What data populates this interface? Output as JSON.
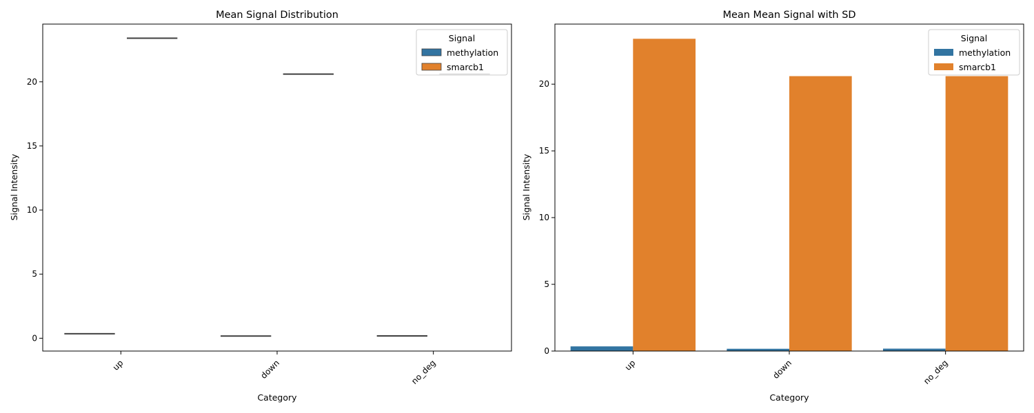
{
  "chart_data": [
    {
      "type": "box",
      "title": "Mean Signal Distribution",
      "xlabel": "Category",
      "ylabel": "Signal Intensity",
      "categories": [
        "up",
        "down",
        "no_deg"
      ],
      "ylim": [
        -1,
        24.5
      ],
      "yticks": [
        0,
        5,
        10,
        15,
        20
      ],
      "legend": {
        "title": "Signal",
        "position": "top-right"
      },
      "series": [
        {
          "name": "methylation",
          "color": "#3274a1",
          "values": [
            0.35,
            0.17,
            0.18
          ]
        },
        {
          "name": "smarcb1",
          "color": "#e1812c",
          "values": [
            23.4,
            20.6,
            20.6
          ]
        }
      ],
      "grid": false
    },
    {
      "type": "bar",
      "title": "Mean Mean Signal with SD",
      "xlabel": "Category",
      "ylabel": "Signal Intensity",
      "categories": [
        "up",
        "down",
        "no_deg"
      ],
      "ylim": [
        0,
        24.5
      ],
      "yticks": [
        0,
        5,
        10,
        15,
        20
      ],
      "legend": {
        "title": "Signal",
        "position": "top-right"
      },
      "series": [
        {
          "name": "methylation",
          "color": "#3274a1",
          "values": [
            0.35,
            0.17,
            0.18
          ]
        },
        {
          "name": "smarcb1",
          "color": "#e1812c",
          "values": [
            23.4,
            20.6,
            20.6
          ]
        }
      ],
      "grid": false
    }
  ]
}
